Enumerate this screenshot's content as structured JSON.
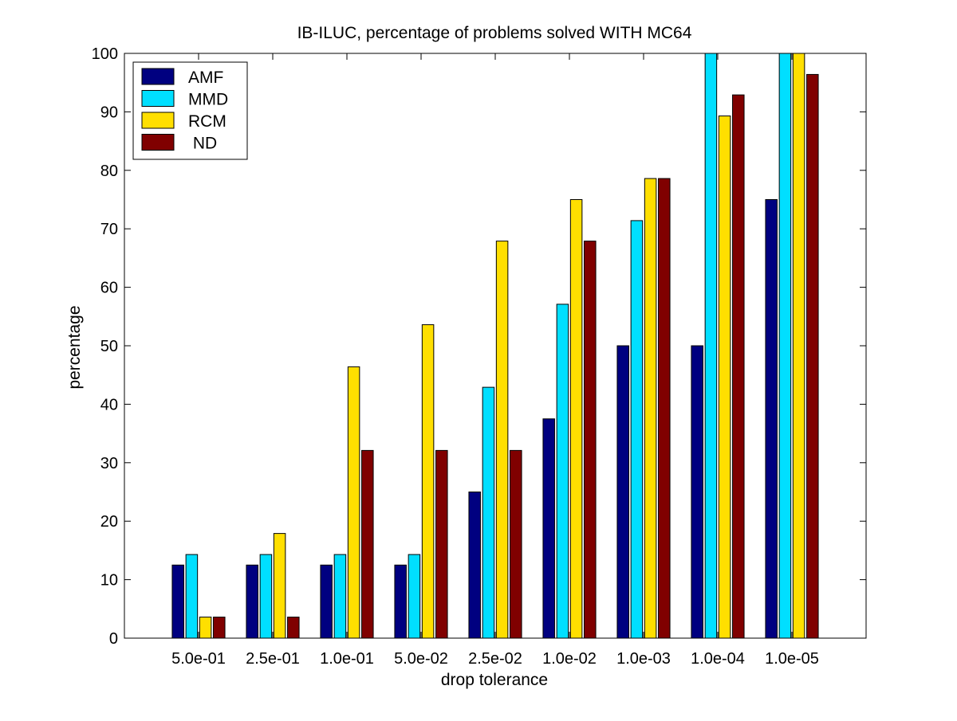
{
  "chart_data": {
    "type": "bar",
    "title": "IB-ILUC, percentage of problems solved WITH MC64",
    "xlabel": "drop tolerance",
    "ylabel": "percentage",
    "categories": [
      "5.0e-01",
      "2.5e-01",
      "1.0e-01",
      "5.0e-02",
      "2.5e-02",
      "1.0e-02",
      "1.0e-03",
      "1.0e-04",
      "1.0e-05"
    ],
    "ylim": [
      0,
      100
    ],
    "yticks": [
      0,
      10,
      20,
      30,
      40,
      50,
      60,
      70,
      80,
      90,
      100
    ],
    "grid": false,
    "legend_position": "top-left",
    "series": [
      {
        "name": "AMF",
        "color": "#000080",
        "values": [
          12.5,
          12.5,
          12.5,
          12.5,
          25,
          37.5,
          50,
          50,
          75
        ]
      },
      {
        "name": "MMD",
        "color": "#00dfff",
        "values": [
          14.3,
          14.3,
          14.3,
          14.3,
          42.9,
          57.1,
          71.4,
          100,
          100
        ]
      },
      {
        "name": "RCM",
        "color": "#ffdf00",
        "values": [
          3.6,
          17.9,
          46.4,
          53.6,
          67.9,
          75,
          78.6,
          89.3,
          100
        ]
      },
      {
        "name": " ND",
        "color": "#800000",
        "values": [
          3.6,
          3.6,
          32.1,
          32.1,
          32.1,
          67.9,
          78.6,
          92.9,
          96.4
        ]
      }
    ]
  }
}
